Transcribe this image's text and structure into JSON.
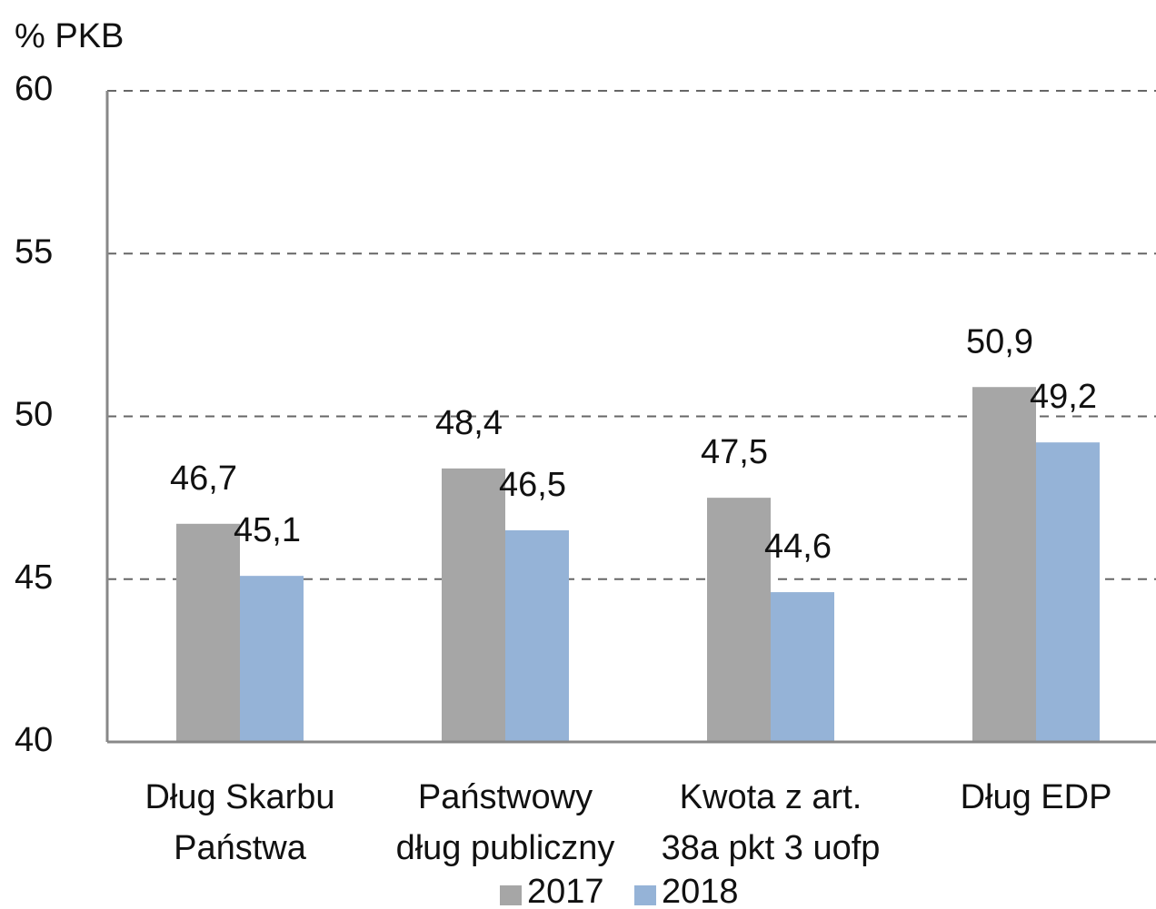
{
  "chart_data": {
    "type": "bar",
    "y_label": "% PKB",
    "categories": [
      "Dług Skarbu\nPaństwa",
      "Państwowy\ndług publiczny",
      "Kwota z art.\n38a pkt 3 uofp",
      "Dług EDP"
    ],
    "series": [
      {
        "name": "2017",
        "color": "#a6a6a6",
        "values": [
          46.7,
          48.4,
          47.5,
          50.9
        ],
        "value_labels": [
          "46,7",
          "48,4",
          "47,5",
          "50,9"
        ]
      },
      {
        "name": "2018",
        "color": "#95b3d7",
        "values": [
          45.1,
          46.5,
          44.6,
          49.2
        ],
        "value_labels": [
          "45,1",
          "46,5",
          "44,6",
          "49,2"
        ]
      }
    ],
    "ylim": [
      40,
      60
    ],
    "yticks": [
      40,
      45,
      50,
      55,
      60
    ],
    "grid": true,
    "legend": "bottom"
  }
}
